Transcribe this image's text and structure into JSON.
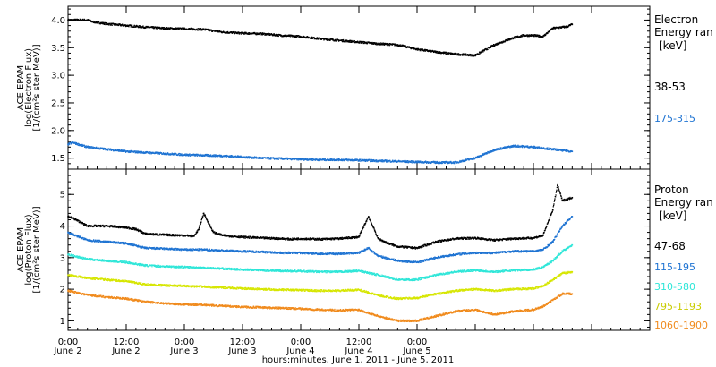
{
  "chart_data": [
    {
      "type": "scatter",
      "ylabel_lines": [
        "ACE EPAM",
        "log(Electron Flux)",
        "[1/(cm²s ster MeV)]"
      ],
      "ylim": [
        1.3,
        4.25
      ],
      "yticks": [
        "1.5",
        "2.0",
        "2.5",
        "3.0",
        "3.5",
        "4.0"
      ],
      "ytick_values": [
        1.5,
        2.0,
        2.5,
        3.0,
        3.5,
        4.0
      ],
      "legend_title": [
        "Electron",
        "Energy ran"
      ],
      "legend_unit": "[keV]",
      "series": [
        {
          "name": "38-53",
          "color": "#000000",
          "x": [
            0.0,
            1.0,
            4.0,
            5.0,
            8.0,
            12.0,
            16.0,
            20.0,
            24.0,
            28.0,
            32.0,
            36.0,
            40.0,
            44.0,
            48.0,
            52.0,
            56.0,
            60.0,
            64.0,
            68.0,
            72.0,
            76.0,
            80.0,
            84.0,
            88.0,
            92.0,
            94.0,
            96.0,
            98.0,
            100.0,
            103.0,
            104.0
          ],
          "y": [
            4.0,
            4.0,
            4.0,
            3.97,
            3.93,
            3.9,
            3.87,
            3.85,
            3.84,
            3.83,
            3.78,
            3.76,
            3.75,
            3.72,
            3.7,
            3.66,
            3.63,
            3.6,
            3.57,
            3.55,
            3.47,
            3.42,
            3.38,
            3.36,
            3.55,
            3.68,
            3.72,
            3.72,
            3.7,
            3.85,
            3.88,
            3.92
          ]
        },
        {
          "name": "175-315",
          "color": "#1e73d2",
          "x": [
            0.0,
            1.0,
            4.0,
            8.0,
            12.0,
            16.0,
            20.0,
            24.0,
            28.0,
            32.0,
            36.0,
            40.0,
            44.0,
            48.0,
            52.0,
            56.0,
            60.0,
            64.0,
            68.0,
            72.0,
            76.0,
            80.0,
            84.0,
            88.0,
            92.0,
            96.0,
            100.0,
            104.0
          ],
          "y": [
            1.75,
            1.78,
            1.7,
            1.66,
            1.62,
            1.6,
            1.58,
            1.56,
            1.55,
            1.54,
            1.52,
            1.5,
            1.49,
            1.48,
            1.47,
            1.47,
            1.46,
            1.45,
            1.44,
            1.43,
            1.42,
            1.42,
            1.5,
            1.65,
            1.72,
            1.7,
            1.66,
            1.62
          ]
        }
      ]
    },
    {
      "type": "scatter",
      "ylabel_lines": [
        "ACE EPAM",
        "log(Proton Flux)",
        "[1/(cm²s ster MeV)]"
      ],
      "ylim": [
        0.7,
        5.8
      ],
      "yticks": [
        "1",
        "2",
        "3",
        "4",
        "5"
      ],
      "ytick_values": [
        1,
        2,
        3,
        4,
        5
      ],
      "legend_title": [
        "Proton",
        "Energy ran"
      ],
      "legend_unit": "[keV]",
      "series": [
        {
          "name": "47-68",
          "color": "#000000",
          "x": [
            0.0,
            1.0,
            4.0,
            8.0,
            12.0,
            14.0,
            16.0,
            20.0,
            24.0,
            26.0,
            27.0,
            28.0,
            30.0,
            32.0,
            36.0,
            40.0,
            44.0,
            46.0,
            48.0,
            52.0,
            56.0,
            60.0,
            62.0,
            64.0,
            66.0,
            68.0,
            72.0,
            76.0,
            80.0,
            84.0,
            88.0,
            92.0,
            96.0,
            98.0,
            100.0,
            101.0,
            102.0,
            104.0
          ],
          "y": [
            4.3,
            4.25,
            4.0,
            4.0,
            3.95,
            3.9,
            3.75,
            3.72,
            3.7,
            3.68,
            3.9,
            4.4,
            3.8,
            3.7,
            3.65,
            3.62,
            3.6,
            3.58,
            3.6,
            3.58,
            3.6,
            3.65,
            4.3,
            3.6,
            3.45,
            3.35,
            3.3,
            3.5,
            3.6,
            3.62,
            3.55,
            3.6,
            3.62,
            3.7,
            4.5,
            5.3,
            4.8,
            4.9
          ]
        },
        {
          "name": "115-195",
          "color": "#1e73d2",
          "x": [
            0.0,
            4.0,
            8.0,
            12.0,
            16.0,
            20.0,
            24.0,
            28.0,
            32.0,
            36.0,
            40.0,
            44.0,
            48.0,
            52.0,
            56.0,
            60.0,
            62.0,
            64.0,
            68.0,
            72.0,
            76.0,
            80.0,
            84.0,
            88.0,
            92.0,
            96.0,
            98.0,
            100.0,
            102.0,
            104.0
          ],
          "y": [
            3.8,
            3.55,
            3.5,
            3.45,
            3.3,
            3.28,
            3.25,
            3.25,
            3.22,
            3.2,
            3.18,
            3.15,
            3.15,
            3.12,
            3.12,
            3.15,
            3.3,
            3.05,
            2.9,
            2.85,
            3.0,
            3.1,
            3.15,
            3.15,
            3.2,
            3.2,
            3.25,
            3.5,
            4.0,
            4.3
          ]
        },
        {
          "name": "310-580",
          "color": "#2ee6d8",
          "x": [
            0.0,
            4.0,
            8.0,
            12.0,
            16.0,
            20.0,
            24.0,
            28.0,
            32.0,
            36.0,
            40.0,
            44.0,
            48.0,
            52.0,
            56.0,
            60.0,
            64.0,
            68.0,
            72.0,
            76.0,
            80.0,
            84.0,
            88.0,
            92.0,
            96.0,
            98.0,
            100.0,
            102.0,
            104.0
          ],
          "y": [
            3.1,
            2.95,
            2.9,
            2.85,
            2.75,
            2.72,
            2.7,
            2.68,
            2.65,
            2.62,
            2.6,
            2.58,
            2.57,
            2.55,
            2.55,
            2.58,
            2.45,
            2.3,
            2.3,
            2.45,
            2.55,
            2.6,
            2.55,
            2.6,
            2.62,
            2.7,
            2.9,
            3.2,
            3.4
          ]
        },
        {
          "name": "795-1193",
          "color": "#d6e600",
          "x": [
            0.0,
            4.0,
            8.0,
            12.0,
            16.0,
            20.0,
            24.0,
            28.0,
            32.0,
            36.0,
            40.0,
            44.0,
            48.0,
            52.0,
            56.0,
            60.0,
            64.0,
            68.0,
            72.0,
            76.0,
            80.0,
            84.0,
            88.0,
            92.0,
            96.0,
            98.0,
            100.0,
            102.0,
            104.0
          ],
          "y": [
            2.45,
            2.35,
            2.3,
            2.25,
            2.15,
            2.12,
            2.1,
            2.08,
            2.05,
            2.02,
            2.0,
            1.98,
            1.97,
            1.95,
            1.95,
            1.98,
            1.8,
            1.7,
            1.72,
            1.85,
            1.95,
            2.0,
            1.95,
            2.0,
            2.02,
            2.1,
            2.3,
            2.5,
            2.55
          ]
        },
        {
          "name": "1060-1900",
          "color": "#f08a1c",
          "x": [
            0.0,
            4.0,
            8.0,
            12.0,
            16.0,
            20.0,
            24.0,
            28.0,
            32.0,
            36.0,
            40.0,
            44.0,
            48.0,
            52.0,
            56.0,
            60.0,
            64.0,
            68.0,
            72.0,
            76.0,
            80.0,
            84.0,
            88.0,
            92.0,
            96.0,
            98.0,
            100.0,
            102.0,
            104.0
          ],
          "y": [
            1.95,
            1.82,
            1.75,
            1.7,
            1.6,
            1.55,
            1.52,
            1.5,
            1.47,
            1.44,
            1.42,
            1.4,
            1.38,
            1.35,
            1.33,
            1.35,
            1.15,
            1.0,
            1.0,
            1.15,
            1.3,
            1.35,
            1.2,
            1.3,
            1.35,
            1.45,
            1.65,
            1.85,
            1.85
          ]
        }
      ]
    }
  ],
  "x_axis": {
    "xlim": [
      0,
      120
    ],
    "tick_values": [
      0,
      12,
      24,
      36,
      48,
      60,
      72,
      84,
      96,
      108,
      120
    ],
    "major_ticks": [
      {
        "value": 0,
        "time": "0:00",
        "day": "June 2"
      },
      {
        "value": 12,
        "time": "12:00",
        "day": "June 2"
      },
      {
        "value": 24,
        "time": "0:00",
        "day": "June 3"
      },
      {
        "value": 36,
        "time": "12:00",
        "day": "June 3"
      },
      {
        "value": 48,
        "time": "0:00",
        "day": "June 4"
      },
      {
        "value": 60,
        "time": "12:00",
        "day": "June 4"
      },
      {
        "value": 72,
        "time": "0:00",
        "day": "June 5"
      }
    ],
    "xlabel": "hours:minutes, June  1, 2011 - June  5, 2011"
  }
}
